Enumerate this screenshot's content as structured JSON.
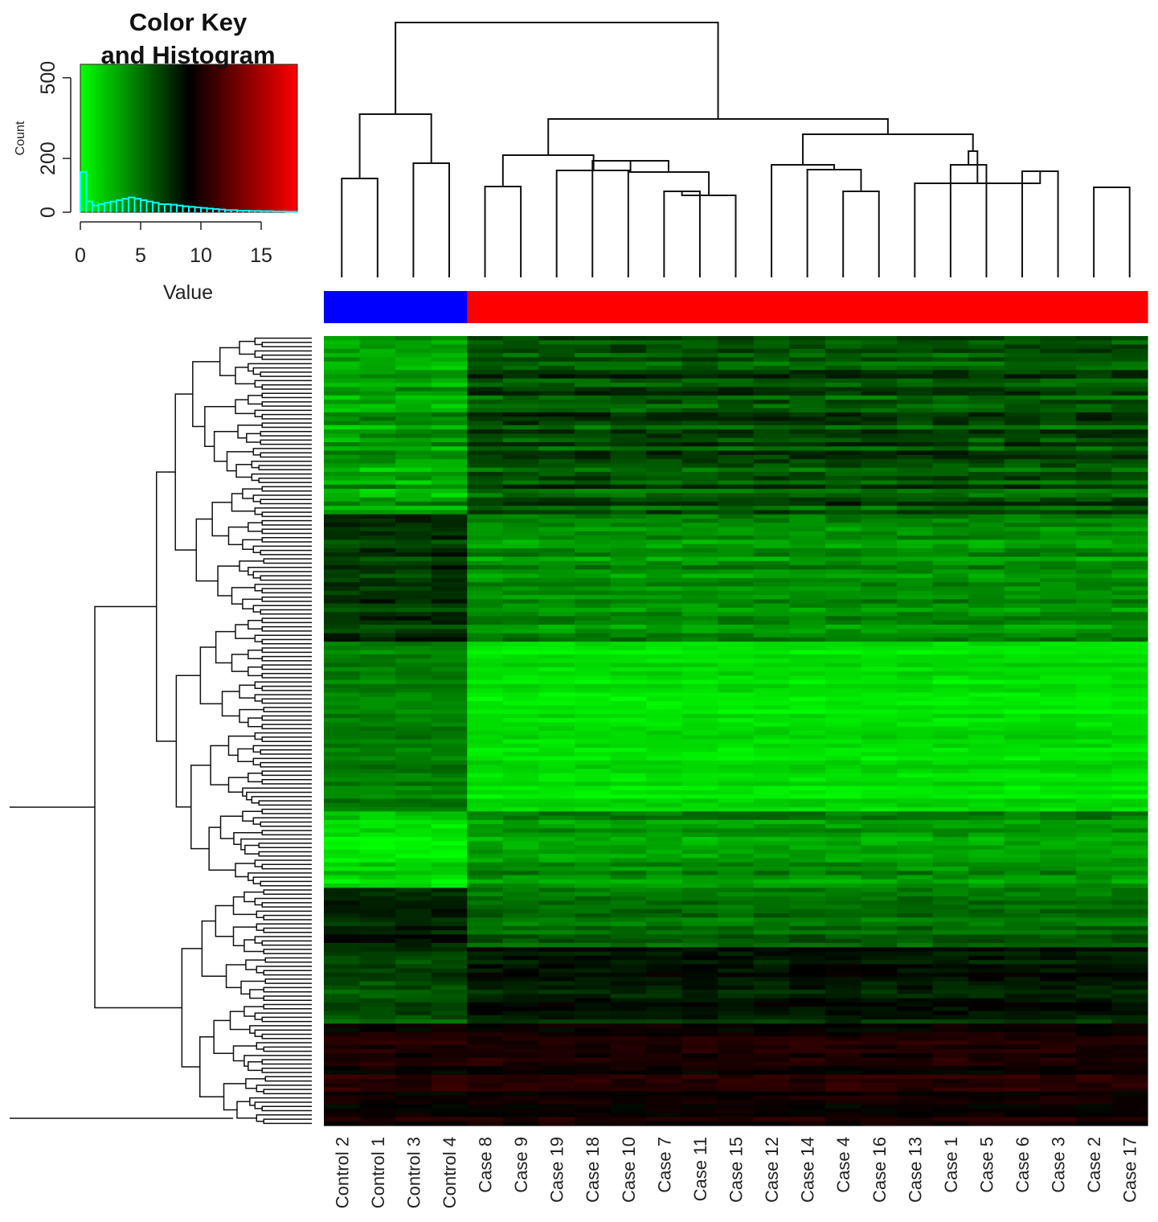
{
  "chart_data": [
    {
      "type": "heatmap",
      "title": "",
      "columns": [
        "Control 2",
        "Control 1",
        "Control 3",
        "Control 4",
        "Case 8",
        "Case 9",
        "Case 19",
        "Case 18",
        "Case 10",
        "Case 7",
        "Case 11",
        "Case 15",
        "Case 12",
        "Case 14",
        "Case 4",
        "Case 16",
        "Case 13",
        "Case 1",
        "Case 5",
        "Case 6",
        "Case 3",
        "Case 2",
        "Case 17"
      ],
      "column_groups": [
        "Control",
        "Control",
        "Control",
        "Control",
        "Case",
        "Case",
        "Case",
        "Case",
        "Case",
        "Case",
        "Case",
        "Case",
        "Case",
        "Case",
        "Case",
        "Case",
        "Case",
        "Case",
        "Case",
        "Case",
        "Case",
        "Case",
        "Case"
      ],
      "group_colors": {
        "Control": "#0000ff",
        "Case": "#ff0000"
      },
      "row_count": 186,
      "row_dendrogram": true,
      "column_dendrogram": true,
      "color_scale": {
        "low": "#00ff00",
        "mid": "#000000",
        "high": "#ff0000",
        "range": [
          0,
          18
        ],
        "mid_value": 9
      },
      "row_blocks": [
        {
          "rows": 42,
          "control": 3.2,
          "case": 6.2,
          "noise": 2.0
        },
        {
          "rows": 30,
          "control": 7.2,
          "case": 4.0,
          "noise": 1.6
        },
        {
          "rows": 40,
          "control": 4.5,
          "case": 1.0,
          "noise": 1.0
        },
        {
          "rows": 18,
          "control": 1.2,
          "case": 3.8,
          "noise": 1.6
        },
        {
          "rows": 14,
          "control": 7.8,
          "case": 5.2,
          "noise": 1.4
        },
        {
          "rows": 18,
          "control": 6.2,
          "case": 8.0,
          "noise": 1.4
        },
        {
          "rows": 24,
          "control": 9.8,
          "case": 9.8,
          "noise": 1.2
        }
      ]
    },
    {
      "type": "bar",
      "title": "Color Key\nand Histogram",
      "xlabel": "Value",
      "ylabel": "Count",
      "xlim": [
        0,
        18
      ],
      "ylim": [
        0,
        550
      ],
      "xticks": [
        "0",
        "5",
        "10",
        "15"
      ],
      "yticks": [
        "0",
        "200",
        "500"
      ],
      "bins": [
        0,
        0.5,
        1,
        1.5,
        2,
        2.5,
        3,
        3.5,
        4,
        4.5,
        5,
        5.5,
        6,
        6.5,
        7,
        7.5,
        8,
        8.5,
        9,
        9.5,
        10,
        10.5,
        11,
        11.5,
        12,
        12.5,
        13,
        13.5,
        14,
        14.5,
        15,
        15.5,
        16,
        16.5,
        17,
        17.5
      ],
      "counts": [
        150,
        40,
        25,
        30,
        35,
        40,
        45,
        50,
        55,
        50,
        45,
        40,
        35,
        30,
        30,
        28,
        25,
        22,
        20,
        18,
        16,
        14,
        12,
        10,
        8,
        8,
        6,
        6,
        5,
        5,
        4,
        4,
        3,
        3,
        2,
        2
      ],
      "line_color": "#00ffff"
    }
  ]
}
